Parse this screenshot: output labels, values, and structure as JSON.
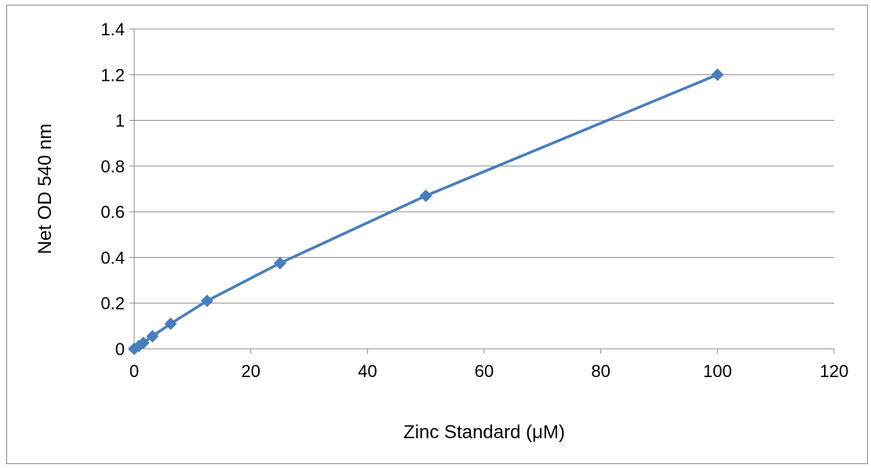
{
  "chart_data": {
    "type": "line",
    "title": "",
    "xlabel": "Zinc Standard (μM)",
    "ylabel": "Net OD 540 nm",
    "xlim": [
      0,
      120
    ],
    "ylim": [
      0,
      1.4
    ],
    "xticks": [
      0,
      20,
      40,
      60,
      80,
      100,
      120
    ],
    "yticks": [
      0,
      0.2,
      0.4,
      0.6,
      0.8,
      1,
      1.2,
      1.4
    ],
    "xtick_labels": [
      "0",
      "20",
      "40",
      "60",
      "80",
      "100",
      "120"
    ],
    "ytick_labels": [
      "0",
      "0.2",
      "0.4",
      "0.6",
      "0.8",
      "1",
      "1.2",
      "1.4"
    ],
    "grid": "horizontal",
    "legend": "none",
    "marker": "diamond",
    "series": [
      {
        "color": "#4a7ebb",
        "x": [
          0,
          0.78,
          1.56,
          3.13,
          6.25,
          12.5,
          25,
          50,
          100
        ],
        "y": [
          0,
          0.012,
          0.026,
          0.055,
          0.11,
          0.21,
          0.375,
          0.67,
          1.2
        ]
      }
    ]
  }
}
